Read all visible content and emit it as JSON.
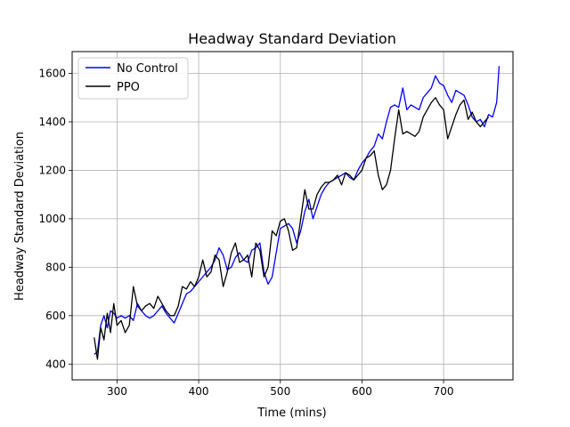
{
  "chart_data": {
    "type": "line",
    "title": "Headway Standard Deviation",
    "xlabel": "Time (mins)",
    "ylabel": "Headway Standard Deviation",
    "xlim": [
      245,
      785
    ],
    "ylim": [
      335,
      1690
    ],
    "xticks": [
      300,
      400,
      500,
      600,
      700
    ],
    "yticks": [
      400,
      600,
      800,
      1000,
      1200,
      1400,
      1600
    ],
    "grid": true,
    "legend_placement": "top-left",
    "series": [
      {
        "name": "No Control",
        "color": "#0000ff",
        "x": [
          272,
          276,
          280,
          284,
          288,
          292,
          296,
          300,
          305,
          310,
          315,
          320,
          325,
          330,
          335,
          340,
          345,
          350,
          355,
          360,
          365,
          370,
          375,
          380,
          385,
          390,
          395,
          400,
          405,
          410,
          415,
          420,
          425,
          430,
          435,
          440,
          445,
          450,
          455,
          460,
          465,
          470,
          475,
          480,
          485,
          490,
          495,
          500,
          505,
          510,
          515,
          520,
          525,
          530,
          535,
          540,
          545,
          550,
          555,
          560,
          565,
          570,
          575,
          580,
          585,
          590,
          595,
          600,
          605,
          610,
          615,
          620,
          625,
          630,
          635,
          640,
          645,
          650,
          655,
          660,
          665,
          670,
          675,
          680,
          685,
          690,
          695,
          700,
          705,
          710,
          715,
          720,
          725,
          730,
          735,
          740,
          745,
          750,
          755,
          760,
          765,
          768
        ],
        "values": [
          440,
          450,
          560,
          600,
          550,
          620,
          610,
          590,
          600,
          590,
          600,
          580,
          650,
          620,
          600,
          590,
          600,
          620,
          640,
          610,
          590,
          570,
          610,
          650,
          690,
          700,
          720,
          740,
          760,
          780,
          800,
          830,
          880,
          850,
          790,
          800,
          840,
          860,
          830,
          820,
          870,
          880,
          900,
          780,
          730,
          760,
          860,
          960,
          970,
          980,
          960,
          900,
          950,
          1030,
          1080,
          1000,
          1050,
          1100,
          1130,
          1150,
          1160,
          1170,
          1180,
          1190,
          1170,
          1160,
          1200,
          1230,
          1250,
          1280,
          1300,
          1350,
          1330,
          1400,
          1460,
          1470,
          1460,
          1540,
          1450,
          1470,
          1460,
          1450,
          1500,
          1520,
          1540,
          1590,
          1560,
          1550,
          1510,
          1480,
          1530,
          1520,
          1510,
          1470,
          1420,
          1400,
          1410,
          1380,
          1430,
          1420,
          1480,
          1630
        ]
      },
      {
        "name": "PPO",
        "color": "#000000",
        "x": [
          272,
          276,
          280,
          284,
          288,
          292,
          296,
          300,
          305,
          310,
          315,
          320,
          325,
          330,
          335,
          340,
          345,
          350,
          355,
          360,
          365,
          370,
          375,
          380,
          385,
          390,
          395,
          400,
          405,
          410,
          415,
          420,
          425,
          430,
          435,
          440,
          445,
          450,
          455,
          460,
          465,
          470,
          475,
          480,
          485,
          490,
          495,
          500,
          505,
          510,
          515,
          520,
          525,
          530,
          535,
          540,
          545,
          550,
          555,
          560,
          565,
          570,
          575,
          580,
          585,
          590,
          595,
          600,
          605,
          610,
          615,
          620,
          625,
          630,
          635,
          640,
          645,
          650,
          655,
          660,
          665,
          670,
          675,
          680,
          685,
          690,
          695,
          700,
          705,
          710,
          715,
          720,
          725,
          730,
          735,
          740,
          745,
          750,
          755
        ],
        "values": [
          510,
          420,
          550,
          500,
          610,
          530,
          650,
          560,
          580,
          530,
          560,
          720,
          640,
          620,
          640,
          650,
          630,
          680,
          650,
          620,
          600,
          600,
          640,
          720,
          710,
          740,
          720,
          760,
          830,
          760,
          780,
          850,
          830,
          720,
          780,
          860,
          900,
          820,
          830,
          850,
          760,
          900,
          870,
          760,
          800,
          950,
          930,
          990,
          1000,
          950,
          870,
          880,
          1000,
          1120,
          1040,
          1040,
          1100,
          1130,
          1150,
          1150,
          1160,
          1180,
          1140,
          1190,
          1180,
          1160,
          1180,
          1200,
          1250,
          1260,
          1280,
          1180,
          1120,
          1140,
          1200,
          1330,
          1450,
          1350,
          1360,
          1350,
          1340,
          1360,
          1420,
          1450,
          1480,
          1500,
          1470,
          1450,
          1330,
          1380,
          1430,
          1470,
          1490,
          1410,
          1440,
          1400,
          1380,
          1400,
          1420
        ]
      }
    ]
  }
}
